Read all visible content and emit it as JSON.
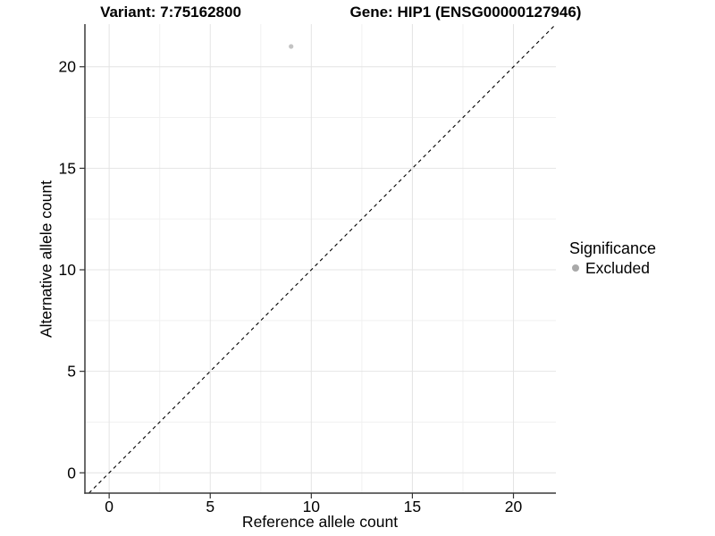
{
  "header": {
    "variant_title": "Variant: 7:75162800",
    "gene_title": "Gene: HIP1 (ENSG00000127946)"
  },
  "chart_data": {
    "type": "scatter",
    "title_left": "Variant: 7:75162800",
    "title_right": "Gene: HIP1 (ENSG00000127946)",
    "xlabel": "Reference allele count",
    "ylabel": "Alternative allele count",
    "xlim": [
      -1.2,
      22.1
    ],
    "ylim": [
      -1.0,
      22.1
    ],
    "xticks": [
      0,
      5,
      10,
      15,
      20
    ],
    "yticks": [
      0,
      5,
      10,
      15,
      20
    ],
    "minor_step": 2.5,
    "grid": true,
    "points": [
      {
        "x": 9,
        "y": 21,
        "series": "Excluded"
      }
    ],
    "reference_line": {
      "type": "identity",
      "equation": "y = x",
      "style": "dashed",
      "color": "#000000"
    },
    "legend": {
      "title": "Significance",
      "position": "right",
      "entries": [
        {
          "label": "Excluded",
          "color": "#a9a9a9"
        }
      ]
    },
    "style": {
      "background": "#ffffff",
      "point_color": "#c3c3c3",
      "grid_major": "#e4e4e4",
      "grid_minor": "#f1f1f1",
      "axis_line": "#3a3a3a",
      "tick_mark": "#333333",
      "text_color": "#000000"
    }
  }
}
